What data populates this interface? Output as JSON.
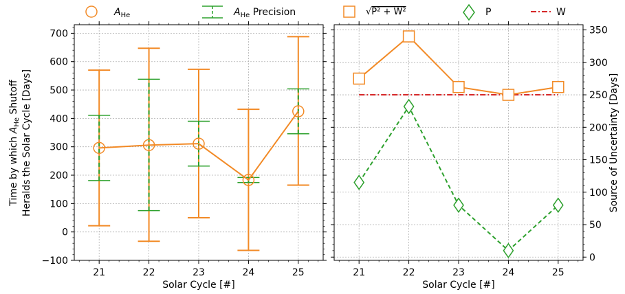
{
  "colors": {
    "orange": "#f28a26",
    "green": "#2ca02c",
    "red": "#d62728",
    "grid": "#b0b0b0"
  },
  "legend": {
    "a_he": "A_He",
    "a_he_precision": "A_He Precision",
    "sqrt": "√(P² + W²)",
    "p": "P",
    "w": "W"
  },
  "chart_data": [
    {
      "type": "line",
      "panel": "left",
      "xlabel": "Solar Cycle [#]",
      "ylabel_line1": "Time by which A_He Shutoff",
      "ylabel_line2": "Heralds the Solar Cycle [Days]",
      "x": [
        21,
        22,
        23,
        24,
        25
      ],
      "xlim": [
        20.5,
        25.5
      ],
      "ylim": [
        -100,
        730
      ],
      "yticks": [
        -100,
        0,
        100,
        200,
        300,
        400,
        500,
        600,
        700
      ],
      "ytick_labels": [
        "−100",
        "0",
        "100",
        "200",
        "300",
        "400",
        "500",
        "600",
        "700"
      ],
      "grid": true,
      "series": [
        {
          "name": "A_He",
          "values": [
            296,
            306,
            311,
            183,
            425
          ],
          "err_low": [
            22,
            -33,
            50,
            -65,
            165
          ],
          "err_high": [
            570,
            647,
            573,
            432,
            688
          ],
          "marker": "circle",
          "linestyle": "solid"
        },
        {
          "name": "A_He Precision",
          "values": [
            296,
            306,
            311,
            183,
            425
          ],
          "err_low": [
            181,
            75,
            232,
            174,
            346
          ],
          "err_high": [
            411,
            538,
            390,
            192,
            504
          ],
          "linestyle": "dashed"
        }
      ]
    },
    {
      "type": "line",
      "panel": "right",
      "xlabel": "Solar Cycle [#]",
      "ylabel": "Source of Uncertainty [Days]",
      "x": [
        21,
        22,
        23,
        24,
        25
      ],
      "xlim": [
        20.5,
        25.5
      ],
      "ylim": [
        -5,
        358
      ],
      "yticks": [
        0,
        50,
        100,
        150,
        200,
        250,
        300,
        350
      ],
      "ytick_labels": [
        "0",
        "50",
        "100",
        "150",
        "200",
        "250",
        "300",
        "350"
      ],
      "grid": true,
      "series": [
        {
          "name": "√(P² + W²)",
          "values": [
            275,
            340,
            262,
            250,
            262
          ],
          "marker": "square",
          "linestyle": "solid"
        },
        {
          "name": "P",
          "values": [
            115,
            232,
            80,
            10,
            80
          ],
          "marker": "diamond",
          "linestyle": "dashed"
        },
        {
          "name": "W",
          "values": [
            250,
            250,
            250,
            250,
            250
          ],
          "linestyle": "dashdot"
        }
      ]
    }
  ]
}
